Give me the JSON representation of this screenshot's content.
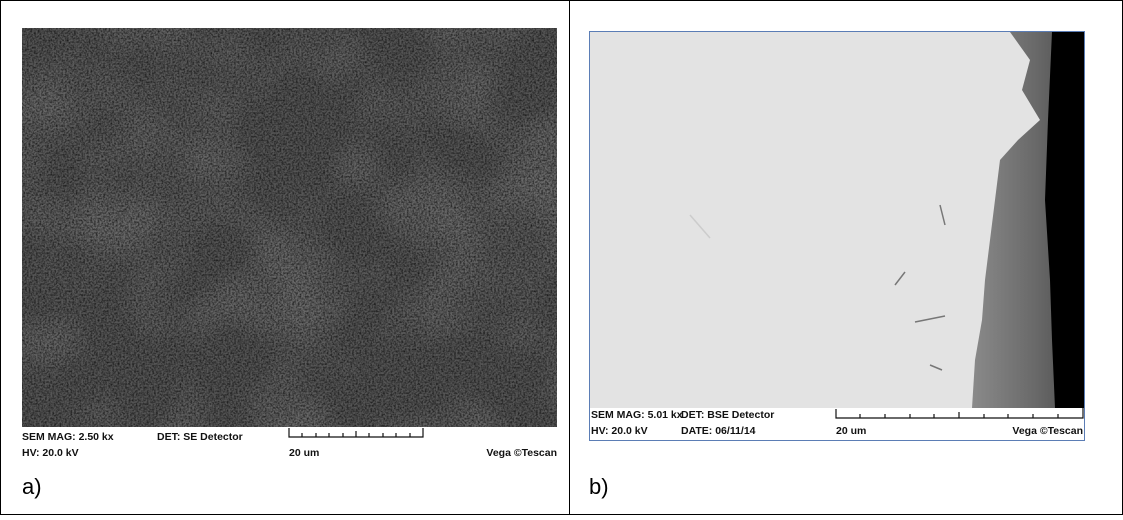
{
  "panels": [
    {
      "info": {
        "mag": "SEM MAG: 2.50 kx",
        "det": "DET: SE Detector",
        "hv": "HV: 20.0 kV",
        "scale": "20 um",
        "brand": "Vega ©Tescan"
      },
      "label": "a)"
    },
    {
      "info": {
        "mag": "SEM MAG: 5.01 kx",
        "det": "DET: BSE Detector",
        "hv": "HV: 20.0 kV",
        "date": "DATE: 06/11/14",
        "scale": "20 um",
        "brand": "Vega ©Tescan"
      },
      "label": "b)"
    }
  ]
}
